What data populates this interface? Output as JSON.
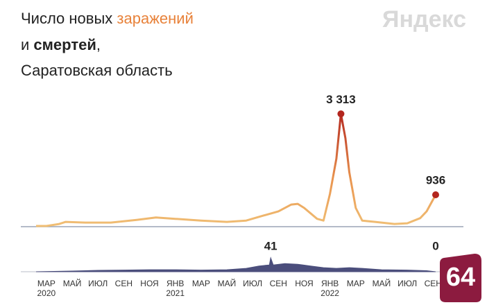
{
  "title": {
    "prefix": "Число новых",
    "joiner": "и",
    "suffix": ",",
    "region": "Саратовская область"
  },
  "logo": "Яндекс",
  "badge": "64",
  "chart_data": [
    {
      "type": "line",
      "x": [
        -0.8,
        0,
        1,
        1.5,
        3,
        5,
        7,
        8.5,
        10,
        12,
        14,
        15.5,
        16.5,
        18,
        19,
        19.5,
        20,
        21,
        21.5,
        22,
        22.5,
        22.85,
        23.2,
        23.5,
        24,
        24.5,
        25.5,
        27,
        28,
        29,
        29.5,
        30.2
      ],
      "xlim": [
        -0.8,
        30.2
      ],
      "ylim": [
        0,
        3400
      ],
      "series": [
        {
          "name": "заражений",
          "color": "#f0bf75",
          "peak_color": "#b3261e",
          "values": [
            20,
            20,
            80,
            140,
            120,
            120,
            200,
            270,
            230,
            180,
            140,
            180,
            290,
            450,
            650,
            670,
            550,
            230,
            180,
            960,
            2000,
            3313,
            2600,
            1600,
            550,
            180,
            140,
            80,
            100,
            250,
            450,
            936
          ],
          "value_labels": [
            null,
            null,
            null,
            null,
            null,
            null,
            null,
            null,
            null,
            null,
            null,
            null,
            null,
            null,
            null,
            null,
            null,
            null,
            null,
            null,
            null,
            "3 313",
            null,
            null,
            null,
            null,
            null,
            null,
            null,
            null,
            null,
            "936"
          ]
        }
      ]
    },
    {
      "type": "area",
      "x": [
        -0.8,
        2,
        4,
        6,
        8,
        10,
        12,
        14,
        15.5,
        16.5,
        17.3,
        17.4,
        17.6,
        18.5,
        19.5,
        20.5,
        21.5,
        22.5,
        23.5,
        24.5,
        26,
        28,
        29.5,
        30.2
      ],
      "xlim": [
        -0.8,
        30.2
      ],
      "ylim": [
        0,
        45
      ],
      "xticks": [
        {
          "value": 0,
          "label": "МАР"
        },
        {
          "value": 2,
          "label": "МАЙ"
        },
        {
          "value": 4,
          "label": "ИЮЛ"
        },
        {
          "value": 6,
          "label": "СЕН"
        },
        {
          "value": 8,
          "label": "НОЯ"
        },
        {
          "value": 10,
          "label": "ЯНВ"
        },
        {
          "value": 12,
          "label": "МАР"
        },
        {
          "value": 14,
          "label": "МАЙ"
        },
        {
          "value": 16,
          "label": "ИЮЛ"
        },
        {
          "value": 18,
          "label": "СЕН"
        },
        {
          "value": 20,
          "label": "НОЯ"
        },
        {
          "value": 22,
          "label": "ЯНВ"
        },
        {
          "value": 24,
          "label": "МАР"
        },
        {
          "value": 26,
          "label": "МАЙ"
        },
        {
          "value": 28,
          "label": "ИЮЛ"
        },
        {
          "value": 30,
          "label": "СЕН"
        }
      ],
      "xtick_years": [
        {
          "value": 0,
          "label": "2020"
        },
        {
          "value": 10,
          "label": "2021"
        },
        {
          "value": 22,
          "label": "2022"
        }
      ],
      "series": [
        {
          "name": "смертей",
          "color": "#4b4e7c",
          "values": [
            0,
            2,
            4,
            5,
            6,
            6,
            5,
            6,
            10,
            17,
            20,
            41,
            20,
            24,
            22,
            17,
            12,
            10,
            12,
            10,
            6,
            5,
            3,
            0
          ],
          "value_labels": [
            null,
            null,
            null,
            null,
            null,
            null,
            null,
            null,
            null,
            null,
            null,
            "41",
            null,
            null,
            null,
            null,
            null,
            null,
            null,
            null,
            null,
            null,
            null,
            "0"
          ]
        }
      ]
    }
  ]
}
